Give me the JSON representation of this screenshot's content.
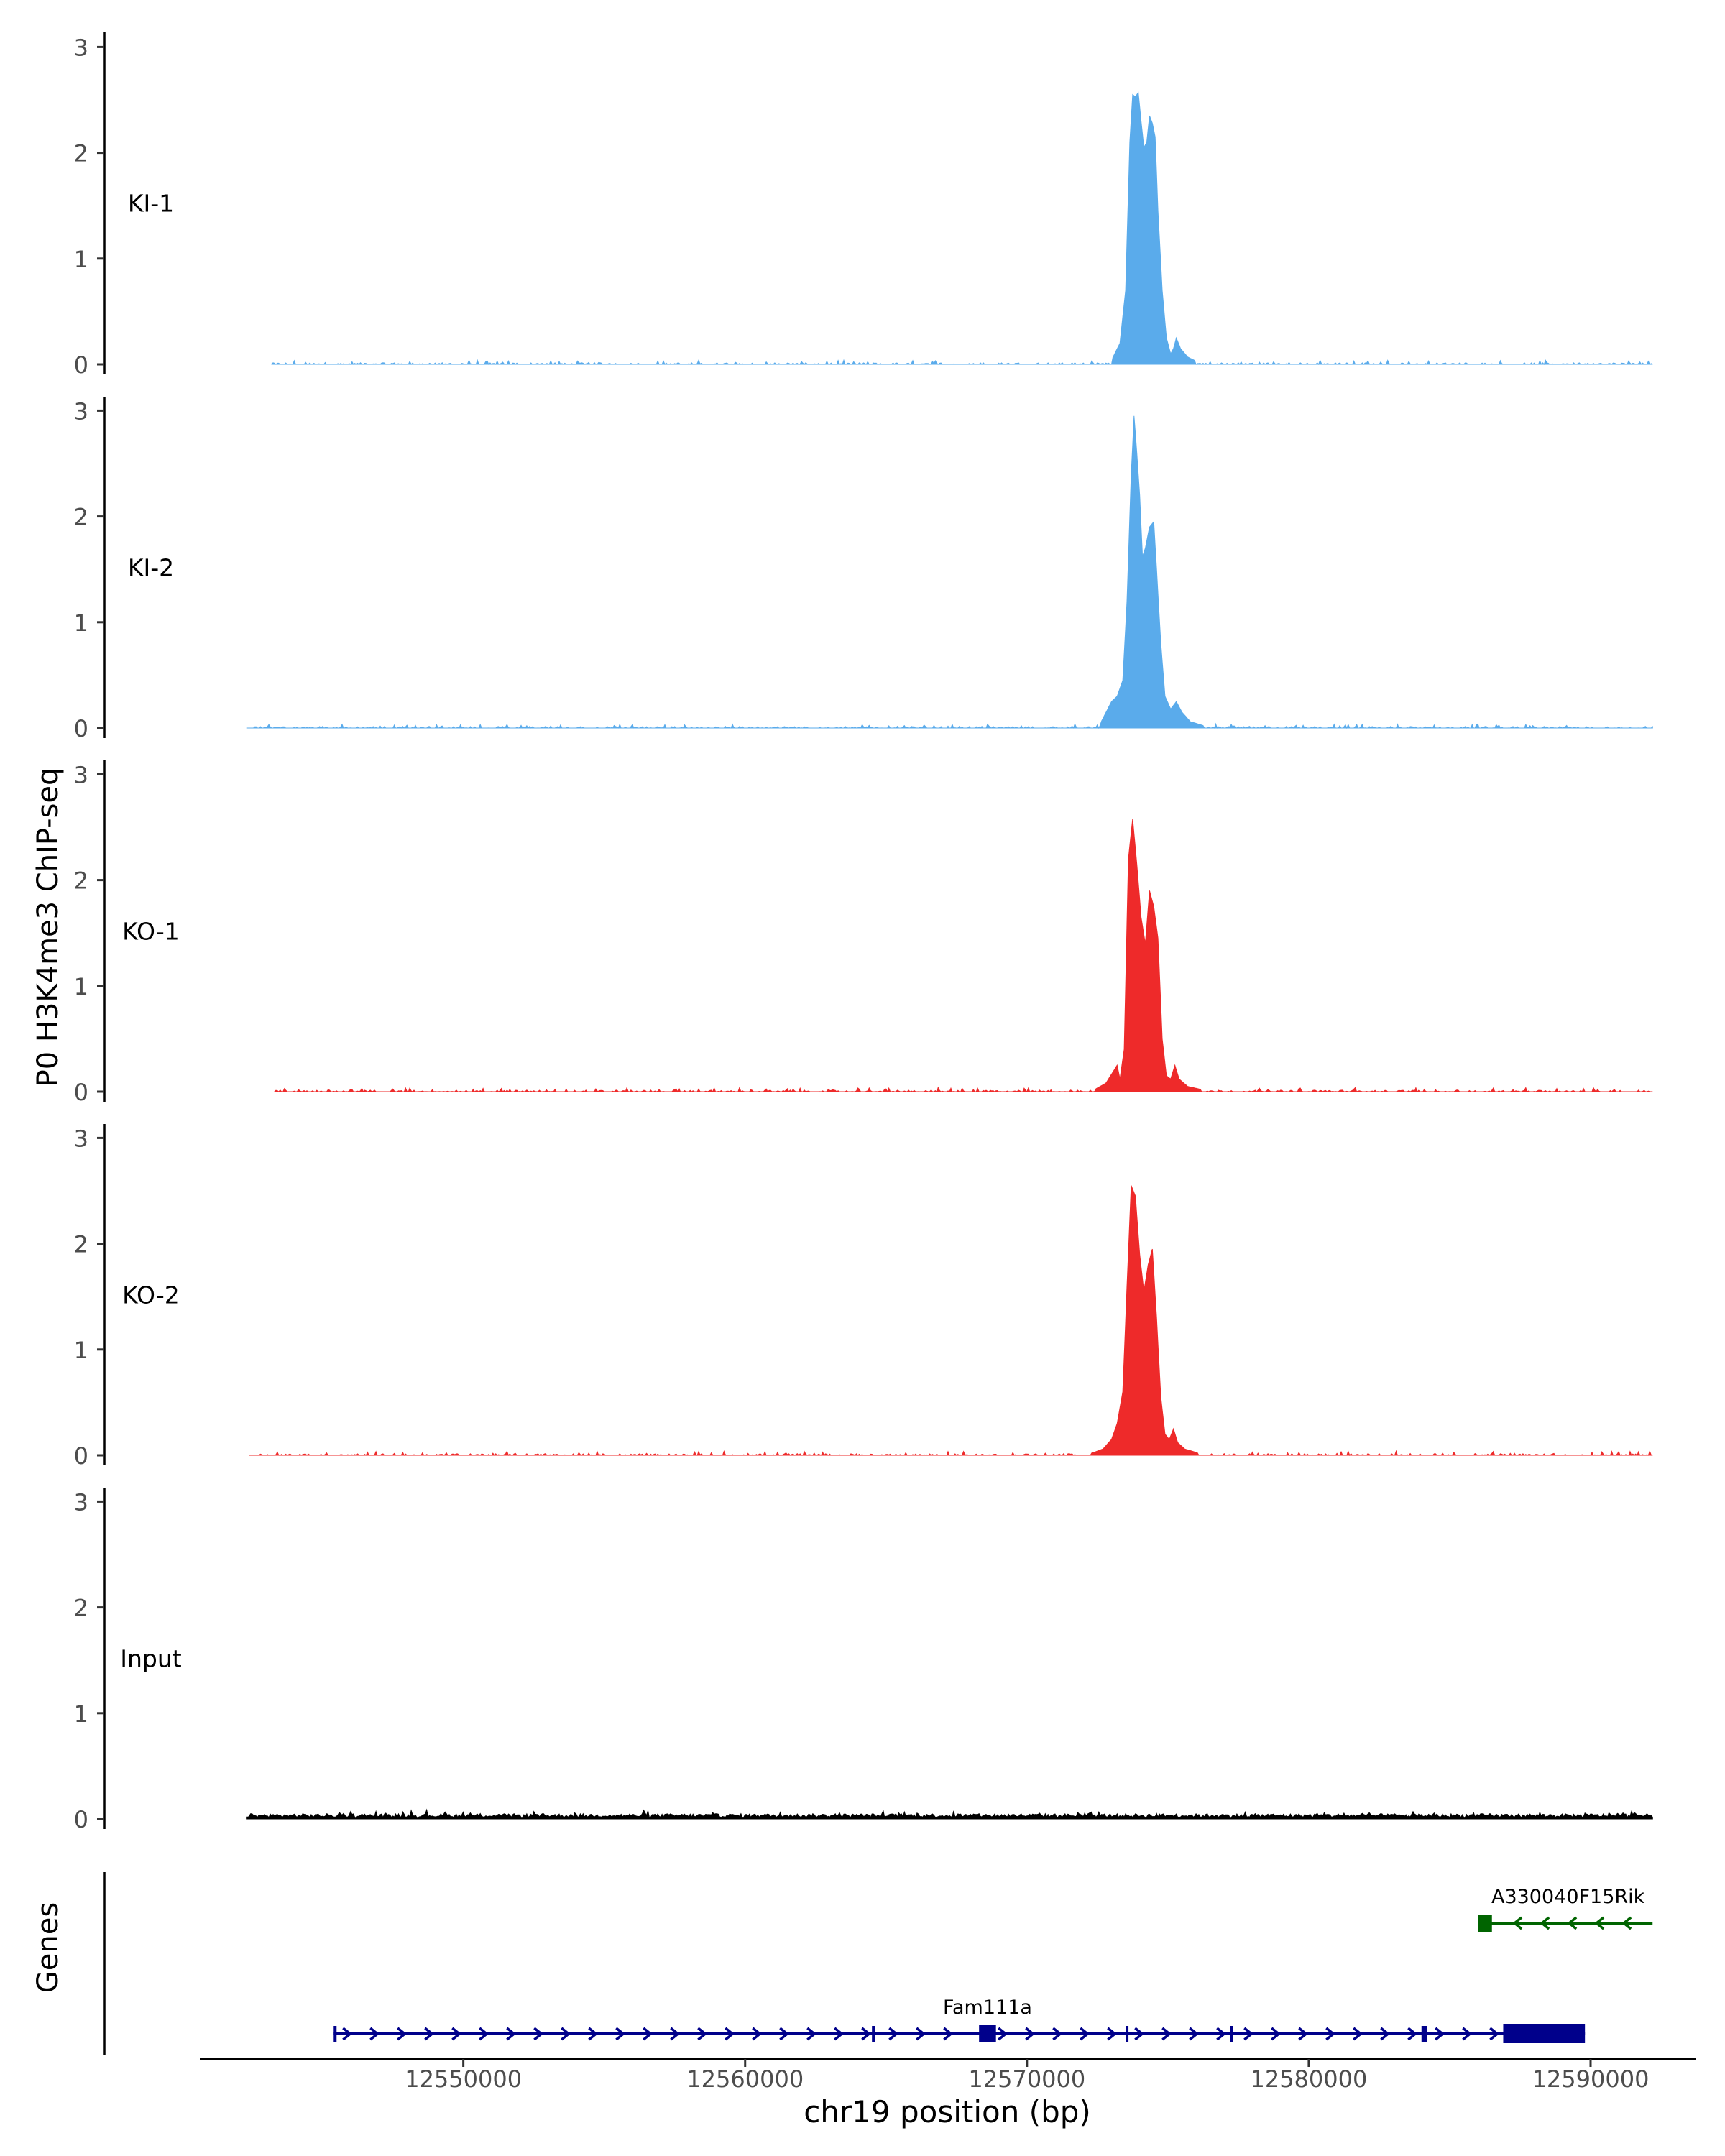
{
  "chart_data": {
    "type": "area",
    "ylabel": "P0 H3K4me3 ChIP-seq",
    "xlabel": "chr19 position (bp)",
    "genes_label": "Genes",
    "ylim": [
      0,
      3.1
    ],
    "xlim": [
      12540700,
      12593800
    ],
    "yticks": [
      0,
      1,
      2,
      3
    ],
    "xticks": [
      12550000,
      12560000,
      12570000,
      12580000,
      12590000
    ],
    "xtick_labels": [
      "12550000",
      "12560000",
      "12570000",
      "12580000",
      "12590000"
    ],
    "ytick_labels": [
      "0",
      "1",
      "2",
      "3"
    ],
    "tracks": [
      {
        "name": "KI-1",
        "color": "#5aabeb",
        "start": 12543200,
        "end": 12592200,
        "points": [
          [
            12573000,
            0.04
          ],
          [
            12573300,
            0.2
          ],
          [
            12573500,
            0.7
          ],
          [
            12573650,
            2.1
          ],
          [
            12573750,
            2.55
          ],
          [
            12573850,
            2.53
          ],
          [
            12573950,
            2.57
          ],
          [
            12574050,
            2.3
          ],
          [
            12574150,
            2.05
          ],
          [
            12574250,
            2.1
          ],
          [
            12574350,
            2.35
          ],
          [
            12574450,
            2.28
          ],
          [
            12574550,
            2.15
          ],
          [
            12574650,
            1.45
          ],
          [
            12574800,
            0.7
          ],
          [
            12574950,
            0.25
          ],
          [
            12575100,
            0.1
          ],
          [
            12575200,
            0.15
          ],
          [
            12575300,
            0.25
          ],
          [
            12575450,
            0.15
          ],
          [
            12575700,
            0.07
          ],
          [
            12576000,
            0.03
          ]
        ]
      },
      {
        "name": "KI-2",
        "color": "#5aabeb",
        "start": 12542300,
        "end": 12592200,
        "points": [
          [
            12572600,
            0.04
          ],
          [
            12573000,
            0.25
          ],
          [
            12573200,
            0.3
          ],
          [
            12573400,
            0.45
          ],
          [
            12573550,
            1.2
          ],
          [
            12573700,
            2.4
          ],
          [
            12573800,
            2.95
          ],
          [
            12573900,
            2.6
          ],
          [
            12574000,
            2.2
          ],
          [
            12574100,
            1.62
          ],
          [
            12574200,
            1.7
          ],
          [
            12574350,
            1.9
          ],
          [
            12574500,
            1.95
          ],
          [
            12574600,
            1.5
          ],
          [
            12574750,
            0.8
          ],
          [
            12574900,
            0.3
          ],
          [
            12575100,
            0.18
          ],
          [
            12575300,
            0.25
          ],
          [
            12575500,
            0.15
          ],
          [
            12575800,
            0.06
          ],
          [
            12576300,
            0.02
          ]
        ]
      },
      {
        "name": "KO-1",
        "color": "#ee2a2a",
        "start": 12543300,
        "end": 12592200,
        "points": [
          [
            12572400,
            0.02
          ],
          [
            12572800,
            0.08
          ],
          [
            12573200,
            0.25
          ],
          [
            12573300,
            0.12
          ],
          [
            12573450,
            0.4
          ],
          [
            12573600,
            2.2
          ],
          [
            12573750,
            2.58
          ],
          [
            12573900,
            2.15
          ],
          [
            12574050,
            1.65
          ],
          [
            12574200,
            1.4
          ],
          [
            12574350,
            1.9
          ],
          [
            12574500,
            1.75
          ],
          [
            12574650,
            1.45
          ],
          [
            12574800,
            0.5
          ],
          [
            12574950,
            0.15
          ],
          [
            12575100,
            0.12
          ],
          [
            12575250,
            0.25
          ],
          [
            12575400,
            0.12
          ],
          [
            12575700,
            0.05
          ],
          [
            12576200,
            0.02
          ]
        ]
      },
      {
        "name": "KO-2",
        "color": "#ee2a2a",
        "start": 12542400,
        "end": 12592200,
        "points": [
          [
            12572300,
            0.02
          ],
          [
            12572700,
            0.06
          ],
          [
            12573000,
            0.15
          ],
          [
            12573200,
            0.3
          ],
          [
            12573400,
            0.6
          ],
          [
            12573550,
            1.6
          ],
          [
            12573700,
            2.55
          ],
          [
            12573850,
            2.45
          ],
          [
            12574000,
            1.9
          ],
          [
            12574150,
            1.55
          ],
          [
            12574300,
            1.8
          ],
          [
            12574450,
            1.95
          ],
          [
            12574600,
            1.3
          ],
          [
            12574750,
            0.55
          ],
          [
            12574900,
            0.2
          ],
          [
            12575050,
            0.15
          ],
          [
            12575200,
            0.25
          ],
          [
            12575350,
            0.12
          ],
          [
            12575600,
            0.06
          ],
          [
            12576100,
            0.02
          ]
        ]
      },
      {
        "name": "Input",
        "color": "#000000",
        "start": 12542300,
        "end": 12592200,
        "points": []
      }
    ],
    "genes": [
      {
        "name": "Fam111a",
        "color": "#00008b",
        "strand": "+",
        "start": 12545400,
        "end": 12589800,
        "exons": [
          [
            12545400,
            12545500
          ],
          [
            12564500,
            12564600
          ],
          [
            12568300,
            12568900
          ],
          [
            12573500,
            12573600
          ],
          [
            12577200,
            12577300
          ],
          [
            12584000,
            12584200
          ],
          [
            12586900,
            12589800
          ]
        ]
      },
      {
        "name": "A330040F15Rik",
        "color": "#006400",
        "strand": "-",
        "start": 12586000,
        "end": 12592200,
        "exons": [
          [
            12586000,
            12586500
          ]
        ]
      }
    ]
  }
}
